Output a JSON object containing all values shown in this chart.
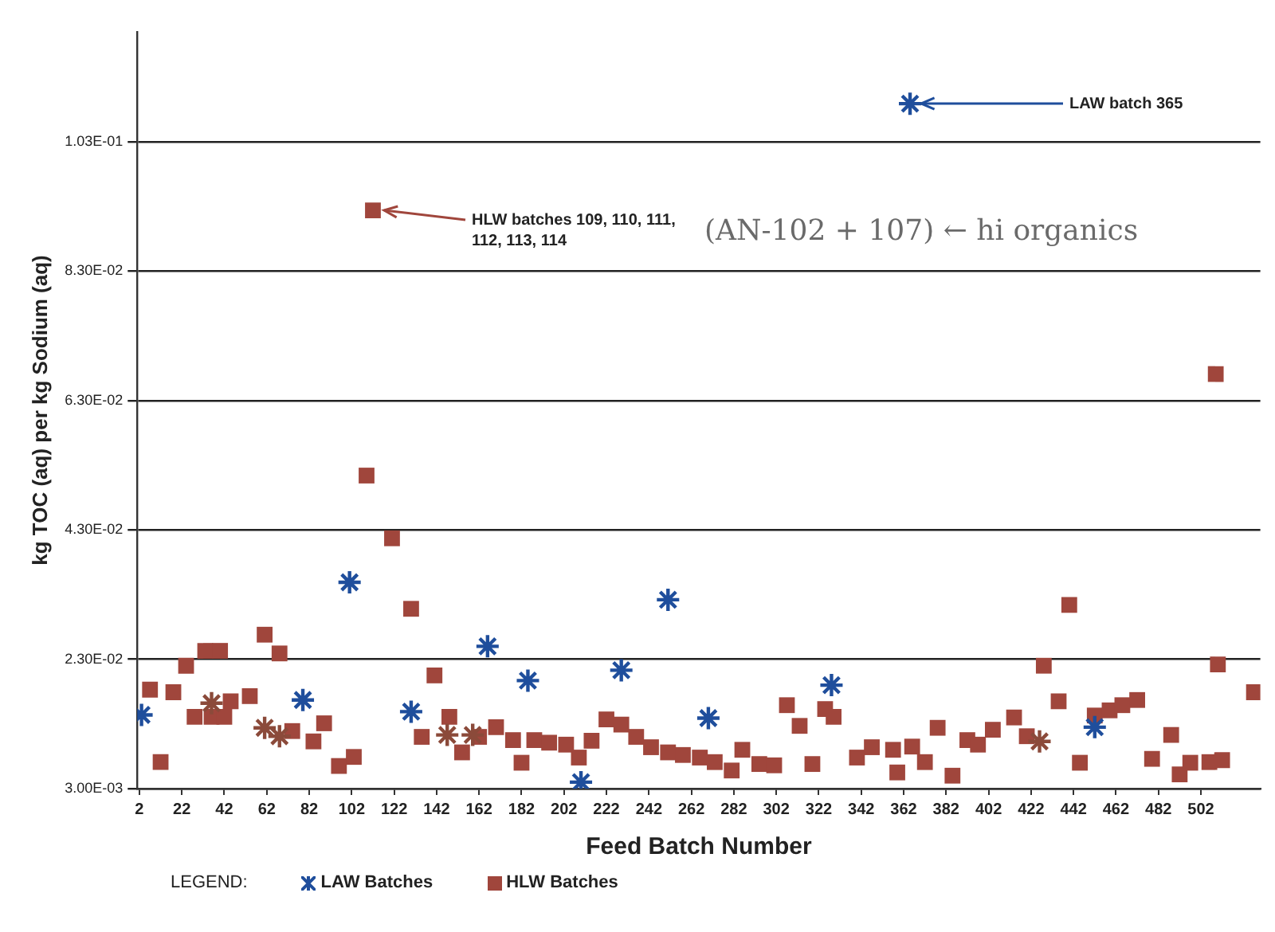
{
  "chart_data": {
    "type": "scatter",
    "xlabel": "Feed Batch Number",
    "ylabel": "kg TOC (aq) per kg Sodium (aq)",
    "legend_title": "LEGEND:",
    "legend": "bottom",
    "grid": "y",
    "xlim": [
      1,
      530
    ],
    "xticks": [
      2,
      22,
      42,
      62,
      82,
      102,
      122,
      142,
      162,
      182,
      202,
      222,
      242,
      262,
      282,
      302,
      322,
      342,
      362,
      382,
      402,
      422,
      442,
      462,
      482,
      502
    ],
    "ylim": [
      0.003,
      0.12
    ],
    "yticks": [
      {
        "value": 0.003,
        "label": "3.00E-03"
      },
      {
        "value": 0.023,
        "label": "2.30E-02"
      },
      {
        "value": 0.043,
        "label": "4.30E-02"
      },
      {
        "value": 0.063,
        "label": "6.30E-02"
      },
      {
        "value": 0.083,
        "label": "8.30E-02"
      },
      {
        "value": 0.103,
        "label": "1.03E-01"
      }
    ],
    "series": [
      {
        "name": "LAW Batches",
        "color": "#1f4e9c",
        "marker": "cross",
        "x": [
          3,
          36,
          61,
          68,
          79,
          101,
          130,
          147,
          159,
          166,
          185,
          210,
          229,
          251,
          270,
          328,
          365,
          426,
          452
        ],
        "values": [
          0.0144,
          0.0162,
          0.0124,
          0.0111,
          0.0167,
          0.0349,
          0.0149,
          0.0113,
          0.0113,
          0.025,
          0.0197,
          0.004,
          0.0213,
          0.0322,
          0.0139,
          0.019,
          0.1089,
          0.0103,
          0.0125
        ],
        "colors": [
          "#1f4e9c",
          "#8b4a3a",
          "#8b4a3a",
          "#8b4a3a",
          "#1f4e9c",
          "#1f4e9c",
          "#1f4e9c",
          "#8b4a3a",
          "#8b4a3a",
          "#1f4e9c",
          "#1f4e9c",
          "#1f4e9c",
          "#1f4e9c",
          "#1f4e9c",
          "#1f4e9c",
          "#1f4e9c",
          "#1f4e9c",
          "#8b4a3a",
          "#1f4e9c"
        ]
      },
      {
        "name": "HLW Batches",
        "color": "#a0463c",
        "marker": "square",
        "x": [
          7,
          12,
          18,
          24,
          28,
          33,
          36,
          40,
          42,
          45,
          54,
          61,
          68,
          74,
          84,
          89,
          96,
          103,
          109,
          112,
          121,
          130,
          135,
          141,
          148,
          154,
          162,
          170,
          178,
          182,
          188,
          195,
          203,
          209,
          215,
          222,
          229,
          236,
          243,
          251,
          258,
          266,
          273,
          281,
          286,
          294,
          301,
          307,
          313,
          319,
          325,
          329,
          340,
          347,
          357,
          359,
          366,
          372,
          378,
          385,
          392,
          397,
          404,
          414,
          420,
          428,
          435,
          440,
          445,
          452,
          459,
          465,
          472,
          479,
          488,
          492,
          497,
          506,
          509,
          510,
          512,
          527
        ],
        "values": [
          0.0183,
          0.0071,
          0.0179,
          0.022,
          0.0141,
          0.0243,
          0.0141,
          0.0243,
          0.0141,
          0.0165,
          0.0173,
          0.0268,
          0.0239,
          0.0119,
          0.0103,
          0.0131,
          0.0065,
          0.0079,
          0.0514,
          0.0924,
          0.0417,
          0.0308,
          0.011,
          0.0205,
          0.0141,
          0.0086,
          0.011,
          0.0125,
          0.0105,
          0.007,
          0.0105,
          0.0101,
          0.0098,
          0.0078,
          0.0104,
          0.0137,
          0.0129,
          0.011,
          0.0094,
          0.0086,
          0.0082,
          0.0078,
          0.0071,
          0.0058,
          0.009,
          0.0068,
          0.0066,
          0.0159,
          0.0127,
          0.0068,
          0.0153,
          0.0141,
          0.0078,
          0.0094,
          0.009,
          0.0055,
          0.0095,
          0.0071,
          0.0124,
          0.005,
          0.0105,
          0.0098,
          0.0121,
          0.014,
          0.0111,
          0.022,
          0.0165,
          0.0314,
          0.007,
          0.0143,
          0.0151,
          0.0159,
          0.0167,
          0.0076,
          0.0113,
          0.0052,
          0.007,
          0.0071,
          0.0671,
          0.0222,
          0.0074,
          0.0179
        ]
      }
    ],
    "annotations": [
      {
        "text": "LAW batch 365",
        "x": 365,
        "y": 0.1089
      },
      {
        "text": "HLW batches 109, 110, 111, 112, 113, 114",
        "x": 112,
        "y": 0.0924
      },
      "(AN-102 + 107) ← hi organics"
    ]
  }
}
